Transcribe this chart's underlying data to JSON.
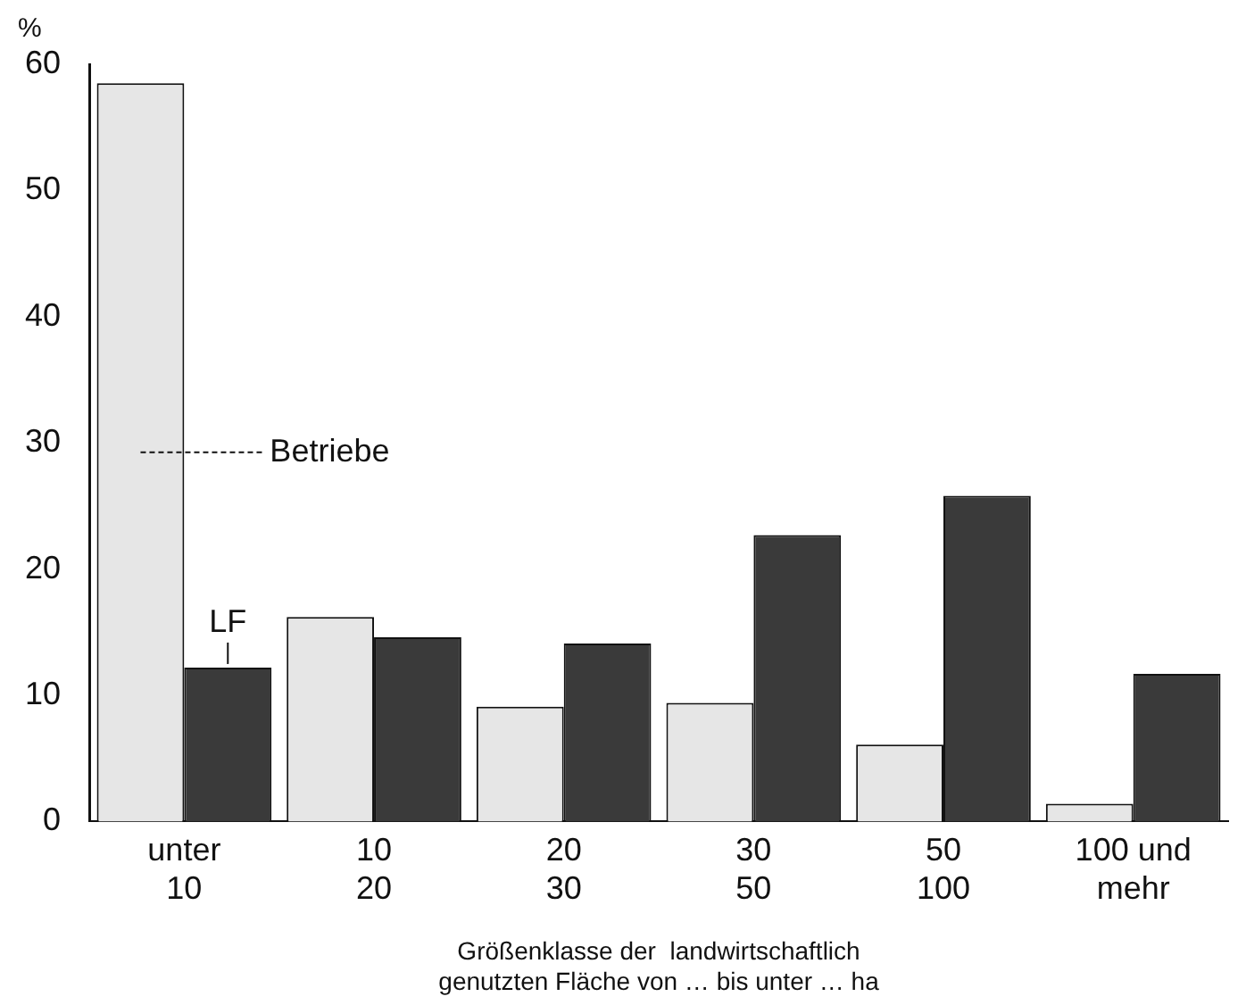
{
  "chart_data": {
    "type": "bar",
    "ylabel": "%",
    "xlabel": "Größenklasse der  landwirtschaftlich\ngenutzten Fläche von … bis unter … ha",
    "categories": [
      "unter\n10",
      "10\n20",
      "20\n30",
      "30\n50",
      "50\n100",
      "100 und\nmehr"
    ],
    "series": [
      {
        "name": "Betriebe",
        "color": "#e6e6e6",
        "values": [
          58.5,
          16.2,
          9.1,
          9.4,
          6.1,
          1.4
        ]
      },
      {
        "name": "LF",
        "color": "#3a3a3a",
        "values": [
          12.2,
          14.6,
          14.1,
          22.7,
          25.8,
          11.7
        ]
      }
    ],
    "ylim": [
      0,
      60
    ],
    "yticks": [
      0,
      10,
      20,
      30,
      40,
      50,
      60
    ],
    "grid": false,
    "legend": false
  }
}
